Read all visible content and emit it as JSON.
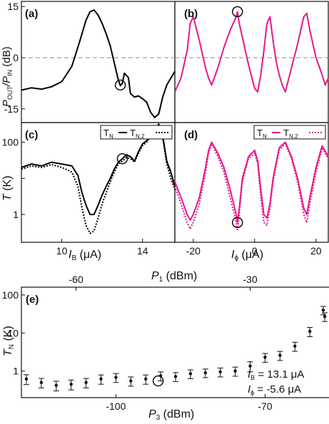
{
  "chart_data": [
    {
      "panel": "(a)",
      "type": "line",
      "ylabel_main": "P",
      "ylabel_sub1": "OUT",
      "ylabel_mid": "/P",
      "ylabel_sub2": "IN",
      "ylabel_unit": " (dB)",
      "xlim": [
        8.0,
        15.6
      ],
      "ylim": [
        -19,
        16.5
      ],
      "yticks": [
        -15,
        0,
        15
      ],
      "reference_line_y": 0,
      "marker_circle": {
        "x": 12.9,
        "y": -8.0
      },
      "series": [
        {
          "color": "#000000",
          "x": [
            8.0,
            8.5,
            9.0,
            9.5,
            10.0,
            10.5,
            10.9,
            11.2,
            11.4,
            11.6,
            11.8,
            12.0,
            12.2,
            12.4,
            12.6,
            12.8,
            12.9,
            13.0,
            13.1,
            13.2,
            13.3,
            13.4,
            13.6,
            13.8,
            14.0,
            14.2,
            14.4,
            14.6,
            14.8,
            15.0,
            15.2,
            15.4,
            15.6
          ],
          "y": [
            -9.5,
            -8.8,
            -9.2,
            -8.5,
            -7.0,
            -2.5,
            5.0,
            11.0,
            13.5,
            14.0,
            12.5,
            10.0,
            7.0,
            3.5,
            -1.5,
            -6.5,
            -8.2,
            -7.5,
            -4.5,
            -5.2,
            -5.8,
            -10.5,
            -11.5,
            -11.2,
            -12.0,
            -13.0,
            -16.0,
            -17.5,
            -16.5,
            -11.5,
            -8.0,
            -6.0,
            -4.0
          ]
        }
      ]
    },
    {
      "panel": "(b)",
      "type": "line",
      "xlim": [
        -26,
        24
      ],
      "ylim": [
        -19,
        16.5
      ],
      "reference_line_y": 0,
      "marker_circle": {
        "x": -5.6,
        "y": 13.5
      },
      "series": [
        {
          "color": "#e6188c",
          "x": [
            -26,
            -24,
            -22,
            -21,
            -20,
            -18,
            -16,
            -15,
            -14,
            -12,
            -10,
            -8,
            -6,
            -5.6,
            -5,
            -4,
            -2,
            0,
            1,
            2,
            3,
            4,
            5,
            6,
            7,
            8,
            9,
            10,
            12,
            14,
            16,
            17,
            18,
            20,
            22,
            23,
            24
          ],
          "y": [
            -10,
            -6,
            2,
            10,
            12,
            5,
            -3,
            -6,
            -8,
            -3,
            3,
            8,
            12,
            13.5,
            10,
            6,
            -2,
            -9,
            -10,
            -5,
            2,
            10,
            12,
            5,
            -1,
            -5,
            -8,
            -10,
            -3,
            4,
            12,
            13,
            8,
            0,
            -5,
            -8,
            -6
          ]
        }
      ]
    },
    {
      "panel": "(c)",
      "type": "line",
      "ylabel_main": "T",
      "ylabel_unit": " (K)",
      "xlabel": "I",
      "xlabel_sub": "B",
      "xlabel_unit": " (μA)",
      "xlim": [
        8.0,
        15.6
      ],
      "ylim_log": [
        0.17,
        350
      ],
      "xticks": [
        10,
        14
      ],
      "yticks": [
        1,
        10,
        100
      ],
      "yticklabels": [
        "1",
        "",
        "100"
      ],
      "legend": {
        "n1": "T",
        "n1_sub": "N",
        "n2": "T",
        "n2_sub": "N,2"
      },
      "marker_circle": {
        "x": 13.0,
        "y": 35
      },
      "series": [
        {
          "name": "TN",
          "color": "#000000",
          "style": "solid",
          "x": [
            8.0,
            8.5,
            9.0,
            9.5,
            10.0,
            10.5,
            10.8,
            11.0,
            11.2,
            11.4,
            11.6,
            11.8,
            12.0,
            12.2,
            12.4,
            12.6,
            12.8,
            13.0,
            13.2,
            13.4,
            13.6,
            13.8,
            14.0,
            14.2,
            14.4,
            14.6,
            14.8,
            15.0,
            15.2,
            15.4,
            15.6
          ],
          "y": [
            20,
            25,
            22,
            28,
            25,
            22,
            12,
            4,
            1.8,
            1.0,
            1.0,
            1.8,
            3.5,
            6,
            10,
            18,
            28,
            35,
            45,
            40,
            30,
            55,
            90,
            110,
            150,
            200,
            320,
            150,
            30,
            15,
            6
          ]
        },
        {
          "name": "TN,2",
          "color": "#000000",
          "style": "dotted",
          "x": [
            8.0,
            8.5,
            9.0,
            9.5,
            10.0,
            10.5,
            10.8,
            11.0,
            11.2,
            11.4,
            11.6,
            11.8,
            12.0,
            12.2,
            12.4,
            12.6,
            12.8,
            13.0,
            13.2,
            13.4,
            13.6,
            13.8,
            14.0,
            14.2,
            14.4,
            14.6,
            14.8,
            15.0,
            15.2,
            15.4,
            15.6
          ],
          "y": [
            18,
            22,
            20,
            24,
            20,
            15,
            6,
            1.5,
            0.5,
            0.3,
            0.35,
            0.8,
            2,
            4,
            8,
            15,
            25,
            30,
            38,
            35,
            28,
            50,
            80,
            100,
            140,
            180,
            280,
            130,
            25,
            10,
            5
          ]
        }
      ]
    },
    {
      "panel": "(d)",
      "type": "line",
      "xlabel": "I",
      "xlabel_sub": "ϕ",
      "xlabel_unit": " (μA)",
      "xlim": [
        -26,
        24
      ],
      "ylim_log": [
        0.17,
        350
      ],
      "xticks": [
        -20,
        0,
        20
      ],
      "legend": {
        "n1": "T",
        "n1_sub": "N",
        "n2": "T",
        "n2_sub": "N,2"
      },
      "marker_circle": {
        "x": -5.6,
        "y": 0.6
      },
      "series": [
        {
          "name": "TN",
          "color": "#e6188c",
          "style": "solid",
          "x": [
            -26,
            -24,
            -22,
            -21,
            -20,
            -18,
            -16,
            -15,
            -14,
            -12,
            -10,
            -8,
            -6,
            -5.6,
            -5,
            -4,
            -2,
            0,
            1,
            2,
            3,
            4,
            5,
            6,
            8,
            10,
            12,
            14,
            16,
            17,
            18,
            20,
            22,
            24
          ],
          "y": [
            8,
            3,
            1,
            0.7,
            1,
            3,
            20,
            60,
            100,
            50,
            20,
            5,
            1,
            0.6,
            1.5,
            10,
            40,
            60,
            30,
            5,
            1,
            0.8,
            2,
            10,
            70,
            100,
            40,
            10,
            1.5,
            1,
            3,
            20,
            80,
            40
          ]
        },
        {
          "name": "TN,2",
          "color": "#e6188c",
          "style": "dotted",
          "x": [
            -26,
            -24,
            -22,
            -21,
            -20,
            -18,
            -16,
            -15,
            -14,
            -12,
            -10,
            -8,
            -6,
            -5.6,
            -5,
            -4,
            -2,
            0,
            1,
            2,
            3,
            4,
            5,
            6,
            8,
            10,
            12,
            14,
            16,
            17,
            18,
            20,
            22,
            24
          ],
          "y": [
            6,
            2,
            0.6,
            0.4,
            0.6,
            2,
            15,
            50,
            90,
            40,
            15,
            3,
            0.6,
            0.35,
            1,
            8,
            35,
            50,
            25,
            3,
            0.6,
            0.5,
            1.5,
            8,
            60,
            90,
            35,
            8,
            1,
            0.6,
            2,
            15,
            70,
            35
          ]
        }
      ]
    },
    {
      "panel": "(e)",
      "type": "scatter",
      "ylabel_main": "T",
      "ylabel_sub": "N",
      "ylabel_unit": " (K)",
      "xlabel_main": "P",
      "xlabel_sub": "3",
      "xlabel_unit": " (dBm)",
      "top_label_main": "P",
      "top_label_sub": "1",
      "top_label_unit": " (dBm)",
      "xlim": [
        -119,
        -57
      ],
      "ylim_log": [
        0.2,
        160
      ],
      "xticks": [
        -100,
        -70
      ],
      "top_ticks": [
        {
          "at": -108,
          "label": "-60"
        },
        {
          "at": -73,
          "label": "-30"
        }
      ],
      "yticks": [
        1,
        10,
        100
      ],
      "annotation_ib": "I",
      "annotation_ib_sub": "B",
      "annotation_ib_value": " = 13.1 μA",
      "annotation_iphi": "I",
      "annotation_iphi_sub": "ϕ",
      "annotation_iphi_value": " = -5.6 μA",
      "open_circle": {
        "x": -91.5,
        "y": 0.55
      },
      "points": {
        "x": [
          -118,
          -115,
          -112,
          -109,
          -106,
          -103,
          -100,
          -97,
          -94,
          -91,
          -88,
          -85,
          -82,
          -79,
          -76,
          -73,
          -70,
          -67,
          -64,
          -61,
          -58
        ],
        "y": [
          0.62,
          0.5,
          0.42,
          0.45,
          0.5,
          0.62,
          0.68,
          0.55,
          0.62,
          0.75,
          0.72,
          0.85,
          0.9,
          0.95,
          1.0,
          1.35,
          2.3,
          2.6,
          4.5,
          11,
          27
        ],
        "err": [
          0.18,
          0.14,
          0.12,
          0.13,
          0.14,
          0.17,
          0.18,
          0.15,
          0.17,
          0.2,
          0.19,
          0.22,
          0.23,
          0.25,
          0.27,
          0.4,
          0.6,
          0.7,
          1.2,
          3,
          7
        ]
      },
      "extra_point": {
        "x": -58.3,
        "y": 40,
        "err": 10
      }
    }
  ]
}
